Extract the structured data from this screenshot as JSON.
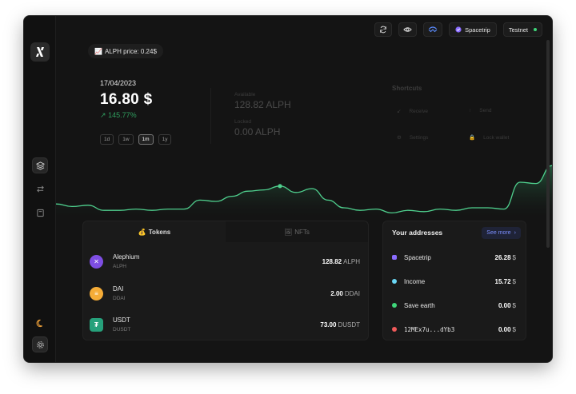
{
  "topbar": {
    "network_label": "Testnet",
    "wallet_name": "Spacetrip"
  },
  "price_pill": {
    "icon": "chart-emoji-icon",
    "text": "ALPH price: 0.24$"
  },
  "overview": {
    "date": "17/04/2023",
    "balance": "16.80 $",
    "change": "145.77%",
    "ranges": [
      "1d",
      "1w",
      "1m",
      "1y"
    ],
    "active_range": "1m",
    "available_label": "Available",
    "available_value": "128.82 ALPH",
    "locked_label": "Locked",
    "locked_value": "0.00 ALPH"
  },
  "shortcuts": {
    "title": "Shortcuts",
    "items": [
      {
        "label": "Receive",
        "icon": "arrow-down-left-icon"
      },
      {
        "label": "Send",
        "icon": "arrow-up-icon"
      },
      {
        "label": "Settings",
        "icon": "gear-icon"
      },
      {
        "label": "Lock wallet",
        "icon": "lock-icon"
      }
    ]
  },
  "chart_data": {
    "type": "area",
    "color": "#4fd08e",
    "x": [
      0,
      1,
      2,
      3,
      4,
      5,
      6,
      7,
      8,
      9,
      10,
      11,
      12,
      13,
      14,
      15,
      16,
      17,
      18,
      19,
      20,
      21,
      22,
      23,
      24,
      25,
      26,
      27,
      28,
      29,
      30,
      31
    ],
    "values": [
      16.3,
      16.1,
      16.2,
      15.8,
      15.8,
      15.9,
      15.8,
      15.9,
      15.9,
      16.6,
      16.5,
      16.9,
      17.3,
      17.4,
      17.7,
      17.2,
      17.5,
      16.6,
      16.0,
      15.8,
      15.9,
      15.6,
      15.8,
      15.7,
      15.9,
      15.8,
      16.0,
      16.0,
      15.9,
      18.0,
      17.9,
      19.3
    ],
    "ylim": [
      15,
      20
    ]
  },
  "tokens_panel": {
    "tab_tokens": "Tokens",
    "tab_nfts": "NFTs",
    "tab_tokens_icon": "money-bag-icon",
    "tab_nfts_icon": "picture-icon",
    "rows": [
      {
        "name": "Alephium",
        "symbol": "ALPH",
        "amount": "128.82",
        "unit": "ALPH",
        "color": "#7e4ee3",
        "glyph": "✕",
        "icon": "alephium-logo-icon"
      },
      {
        "name": "DAI",
        "symbol": "DDAI",
        "amount": "2.00",
        "unit": "DDAI",
        "color": "#f5ac37",
        "glyph": "≡",
        "icon": "dai-logo-icon"
      },
      {
        "name": "USDT",
        "symbol": "DUSDT",
        "amount": "73.00",
        "unit": "DUSDT",
        "color": "#26a17b",
        "glyph": "₮",
        "icon": "usdt-logo-icon"
      }
    ]
  },
  "addresses_panel": {
    "title": "Your addresses",
    "see_more": "See more",
    "rows": [
      {
        "name": "Spacetrip",
        "amount": "26.28",
        "unit": "$",
        "color": "#8a6cff",
        "mono": false
      },
      {
        "name": "Income",
        "amount": "15.72",
        "unit": "$",
        "color": "#6ad7f5",
        "mono": false
      },
      {
        "name": "Save earth",
        "amount": "0.00",
        "unit": "$",
        "color": "#3fd67a",
        "mono": false
      },
      {
        "name": "12MEx7u...dYb3",
        "amount": "0.00",
        "unit": "$",
        "color": "#f05a5a",
        "mono": true
      }
    ]
  }
}
